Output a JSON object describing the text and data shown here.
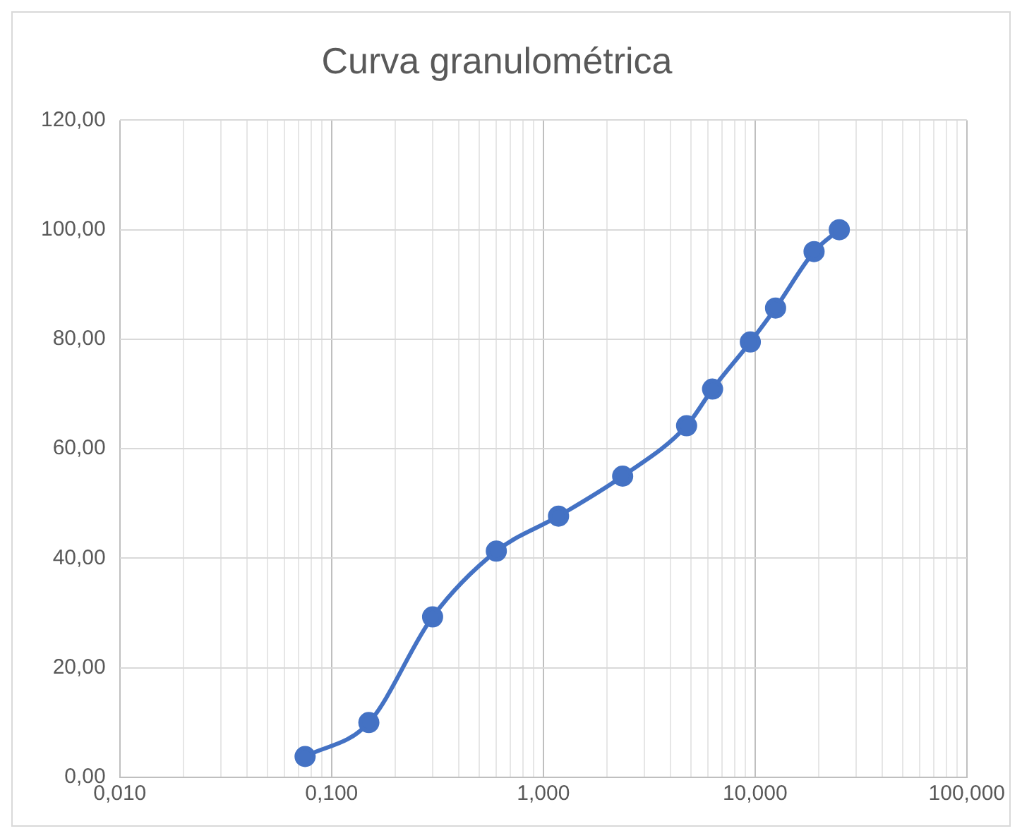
{
  "chart_data": {
    "type": "line",
    "title": "Curva granulométrica",
    "x": [
      0.075,
      0.15,
      0.3,
      0.6,
      1.18,
      2.37,
      4.75,
      6.3,
      9.5,
      12.5,
      19,
      25
    ],
    "series": [
      {
        "color": "#4472c4",
        "values": [
          3.8,
          10,
          29.3,
          41.3,
          47.7,
          55,
          64.2,
          70.9,
          79.5,
          85.7,
          96,
          100
        ]
      }
    ],
    "log": "x",
    "xlim": [
      0.01,
      100
    ],
    "xticks": [
      {
        "value": 0.01,
        "label": "0,010"
      },
      {
        "value": 0.02,
        "label": null
      },
      {
        "value": 0.03,
        "label": null
      },
      {
        "value": 0.04,
        "label": null
      },
      {
        "value": 0.05,
        "label": null
      },
      {
        "value": 0.06,
        "label": null
      },
      {
        "value": 0.07,
        "label": null
      },
      {
        "value": 0.08,
        "label": null
      },
      {
        "value": 0.09,
        "label": null
      },
      {
        "value": 0.1,
        "label": "0,100"
      },
      {
        "value": 0.2,
        "label": null
      },
      {
        "value": 0.3,
        "label": null
      },
      {
        "value": 0.4,
        "label": null
      },
      {
        "value": 0.5,
        "label": null
      },
      {
        "value": 0.6,
        "label": null
      },
      {
        "value": 0.7,
        "label": null
      },
      {
        "value": 0.8,
        "label": null
      },
      {
        "value": 0.9,
        "label": null
      },
      {
        "value": 1,
        "label": "1,000"
      },
      {
        "value": 2,
        "label": null
      },
      {
        "value": 3,
        "label": null
      },
      {
        "value": 4,
        "label": null
      },
      {
        "value": 5,
        "label": null
      },
      {
        "value": 6,
        "label": null
      },
      {
        "value": 7,
        "label": null
      },
      {
        "value": 8,
        "label": null
      },
      {
        "value": 9,
        "label": null
      },
      {
        "value": 10,
        "label": "10,000"
      },
      {
        "value": 20,
        "label": null
      },
      {
        "value": 30,
        "label": null
      },
      {
        "value": 40,
        "label": null
      },
      {
        "value": 50,
        "label": null
      },
      {
        "value": 60,
        "label": null
      },
      {
        "value": 70,
        "label": null
      },
      {
        "value": 80,
        "label": null
      },
      {
        "value": 90,
        "label": null
      },
      {
        "value": 100,
        "label": "100,000"
      }
    ],
    "ylim": [
      0,
      120
    ],
    "yticks": [
      {
        "value": 0,
        "label": "0,00"
      },
      {
        "value": 20,
        "label": "20,00"
      },
      {
        "value": 40,
        "label": "40,00"
      },
      {
        "value": 60,
        "label": "60,00"
      },
      {
        "value": 80,
        "label": "80,00"
      },
      {
        "value": 100,
        "label": "100,00"
      },
      {
        "value": 120,
        "label": "120,00"
      }
    ],
    "grid": true,
    "marker": "circle",
    "line_style": "solid",
    "legend": false
  }
}
